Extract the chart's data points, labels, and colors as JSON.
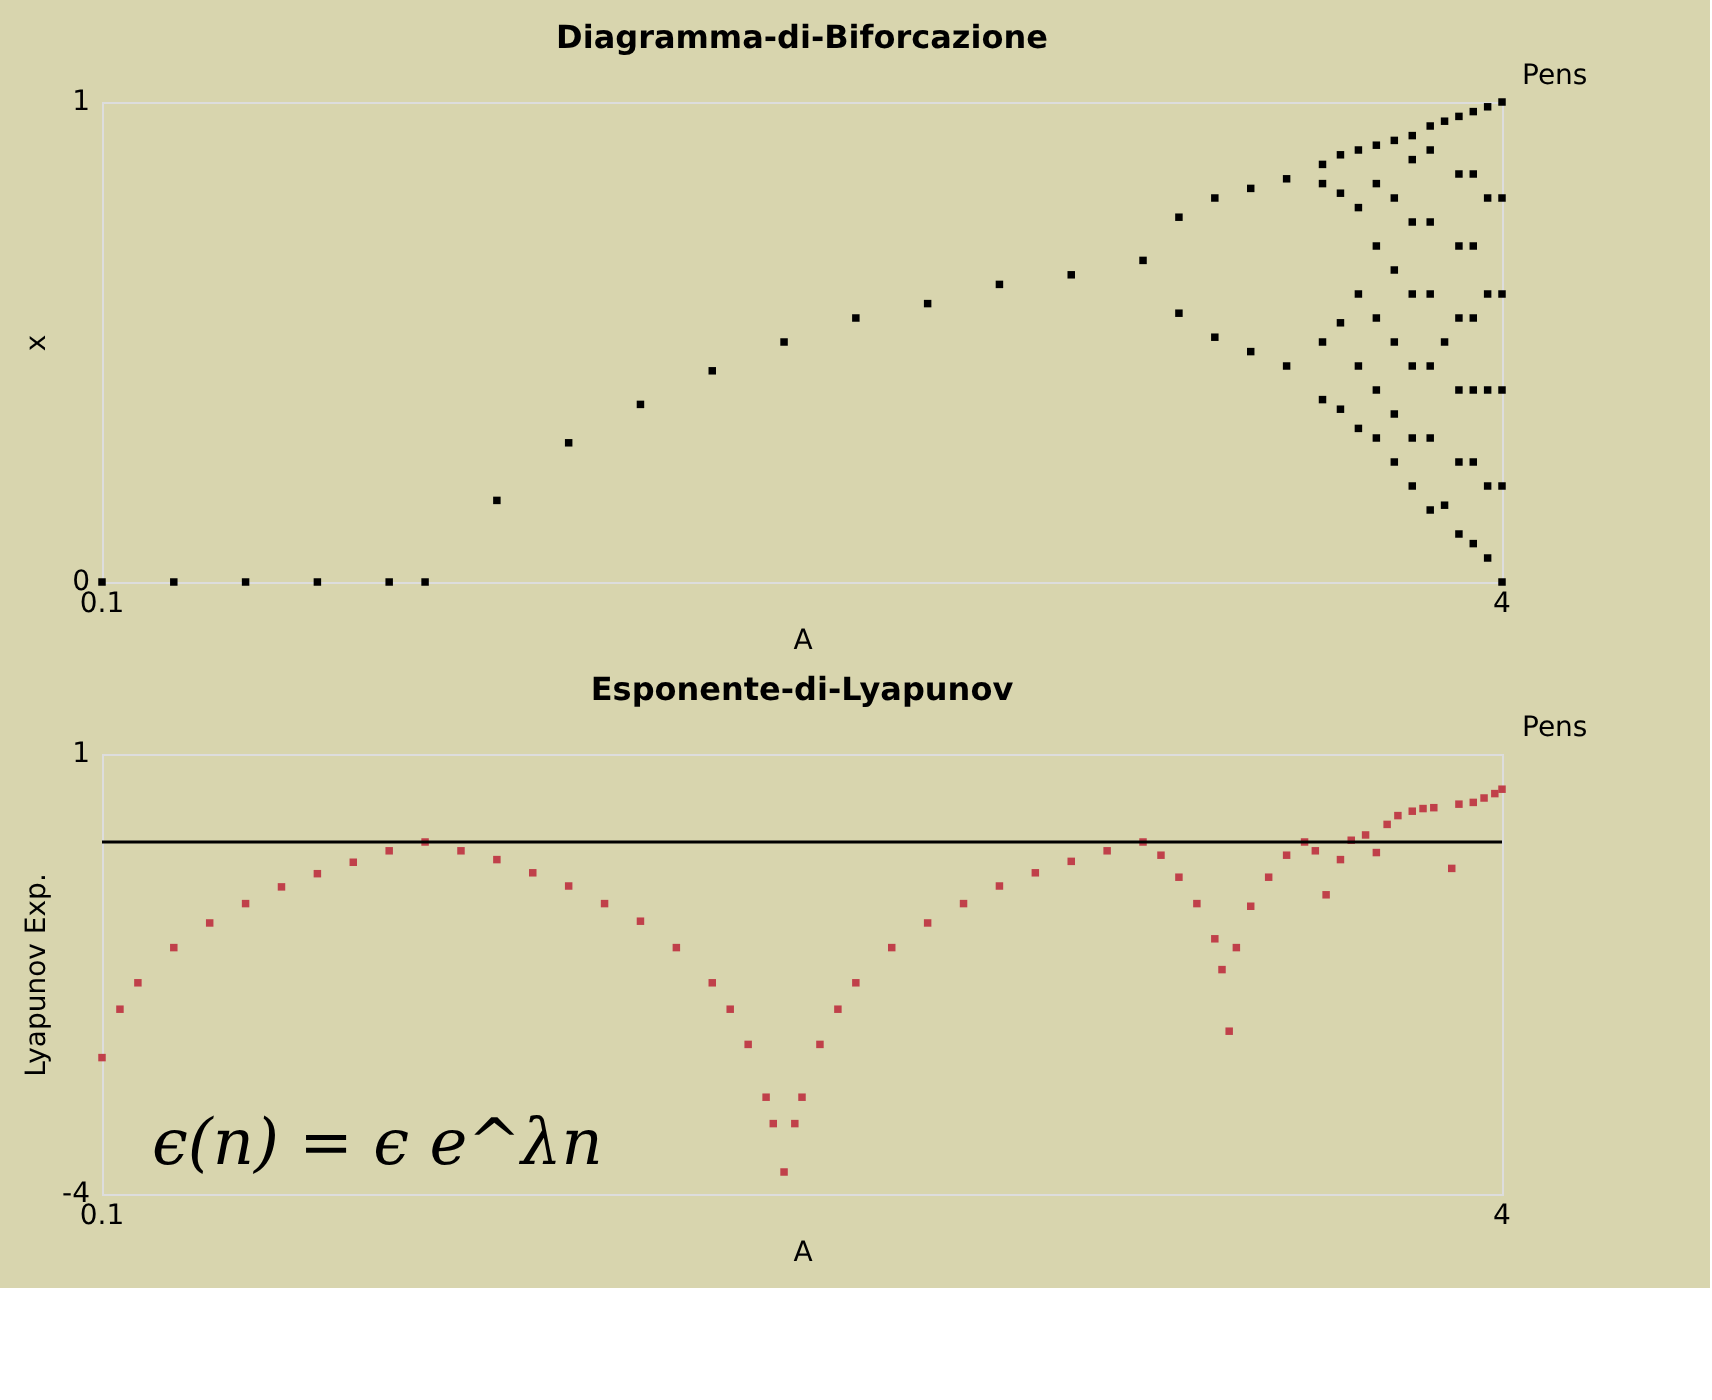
{
  "chart_data": [
    {
      "type": "scatter",
      "title": "Diagramma-di-Biforcazione",
      "xlabel": "A",
      "ylabel": "x",
      "annotations": [
        "Pens"
      ],
      "marker": "square",
      "xlim": [
        0.1,
        4
      ],
      "xticks": [
        0.1,
        4
      ],
      "ylim": [
        0,
        1
      ],
      "yticks": [
        0,
        1
      ],
      "series": [
        {
          "color": "#000000",
          "x": [
            0.1,
            0.3,
            0.5,
            0.7,
            0.9,
            1.0,
            1.2,
            1.4,
            1.6,
            1.8,
            2.0,
            2.2,
            2.4,
            2.6,
            2.8,
            3.0,
            3.1,
            3.1,
            3.2,
            3.2,
            3.3,
            3.3,
            3.4,
            3.4,
            3.5,
            3.5,
            3.5,
            3.5,
            3.55,
            3.55,
            3.55,
            3.55,
            3.6,
            3.6,
            3.6,
            3.6,
            3.6,
            3.65,
            3.65,
            3.65,
            3.65,
            3.65,
            3.65,
            3.7,
            3.7,
            3.7,
            3.7,
            3.7,
            3.7,
            3.75,
            3.75,
            3.75,
            3.75,
            3.75,
            3.75,
            3.75,
            3.8,
            3.8,
            3.8,
            3.8,
            3.8,
            3.8,
            3.8,
            3.84,
            3.84,
            3.84,
            3.88,
            3.88,
            3.88,
            3.88,
            3.88,
            3.88,
            3.88,
            3.92,
            3.92,
            3.92,
            3.92,
            3.92,
            3.92,
            3.92,
            3.96,
            3.96,
            3.96,
            3.96,
            3.96,
            3.96,
            4.0,
            4.0,
            4.0,
            4.0,
            4.0,
            4.0
          ],
          "values": [
            0,
            0,
            0,
            0,
            0,
            0,
            0.17,
            0.29,
            0.37,
            0.44,
            0.5,
            0.55,
            0.58,
            0.62,
            0.64,
            0.67,
            0.56,
            0.76,
            0.51,
            0.8,
            0.48,
            0.82,
            0.45,
            0.84,
            0.38,
            0.5,
            0.83,
            0.87,
            0.36,
            0.54,
            0.81,
            0.89,
            0.32,
            0.45,
            0.6,
            0.78,
            0.9,
            0.3,
            0.4,
            0.55,
            0.7,
            0.83,
            0.91,
            0.25,
            0.35,
            0.5,
            0.65,
            0.8,
            0.92,
            0.2,
            0.3,
            0.45,
            0.6,
            0.75,
            0.88,
            0.93,
            0.15,
            0.3,
            0.45,
            0.6,
            0.75,
            0.9,
            0.95,
            0.16,
            0.5,
            0.96,
            0.1,
            0.25,
            0.4,
            0.55,
            0.7,
            0.85,
            0.97,
            0.08,
            0.25,
            0.4,
            0.55,
            0.7,
            0.85,
            0.98,
            0.05,
            0.2,
            0.4,
            0.6,
            0.8,
            0.99,
            0.0,
            0.2,
            0.4,
            0.6,
            0.8,
            1.0
          ]
        }
      ]
    },
    {
      "type": "scatter",
      "title": "Esponente-di-Lyapunov",
      "xlabel": "A",
      "ylabel": "Lyapunov Exp.",
      "annotations": [
        "Pens",
        "ϵ(n) = ϵ e^λn"
      ],
      "marker": "square",
      "xlim": [
        0.1,
        4
      ],
      "xticks": [
        0.1,
        4
      ],
      "ylim": [
        -4,
        1
      ],
      "yticks": [
        -4,
        1
      ],
      "ref_lines": [
        {
          "axis": "y",
          "value": 0,
          "color": "#000000"
        }
      ],
      "series": [
        {
          "color": "#c0404a",
          "x": [
            0.1,
            0.15,
            0.2,
            0.3,
            0.4,
            0.5,
            0.6,
            0.7,
            0.8,
            0.9,
            1.0,
            1.1,
            1.2,
            1.3,
            1.4,
            1.5,
            1.6,
            1.7,
            1.8,
            1.85,
            1.9,
            1.95,
            1.97,
            2.0,
            2.03,
            2.05,
            2.1,
            2.15,
            2.2,
            2.3,
            2.4,
            2.5,
            2.6,
            2.7,
            2.8,
            2.9,
            3.0,
            3.05,
            3.1,
            3.15,
            3.2,
            3.22,
            3.24,
            3.26,
            3.3,
            3.35,
            3.4,
            3.45,
            3.48,
            3.51,
            3.55,
            3.58,
            3.62,
            3.65,
            3.68,
            3.71,
            3.75,
            3.78,
            3.81,
            3.86,
            3.88,
            3.92,
            3.95,
            3.98,
            4.0
          ],
          "values": [
            -2.45,
            -1.9,
            -1.6,
            -1.2,
            -0.92,
            -0.7,
            -0.51,
            -0.36,
            -0.23,
            -0.1,
            0,
            -0.1,
            -0.2,
            -0.35,
            -0.5,
            -0.7,
            -0.9,
            -1.2,
            -1.6,
            -1.9,
            -2.3,
            -2.9,
            -3.2,
            -3.75,
            -3.2,
            -2.9,
            -2.3,
            -1.9,
            -1.6,
            -1.2,
            -0.92,
            -0.7,
            -0.5,
            -0.35,
            -0.22,
            -0.1,
            0,
            -0.15,
            -0.4,
            -0.7,
            -1.1,
            -1.45,
            -2.15,
            -1.2,
            -0.73,
            -0.4,
            -0.15,
            0,
            -0.1,
            -0.6,
            -0.2,
            0.02,
            0.08,
            -0.12,
            0.2,
            0.3,
            0.35,
            0.38,
            0.39,
            -0.3,
            0.43,
            0.45,
            0.5,
            0.55,
            0.6
          ]
        }
      ]
    }
  ]
}
